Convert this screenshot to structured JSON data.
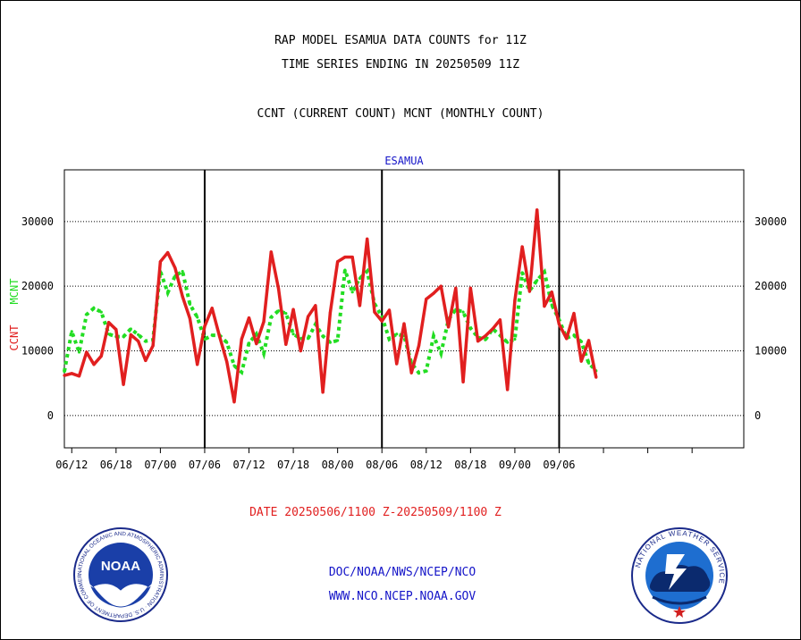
{
  "header": {
    "title_line1": "RAP MODEL ESAMUA DATA COUNTS for 11Z",
    "title_line2": "TIME SERIES ENDING IN 20250509 11Z",
    "subtitle": "CCNT (CURRENT COUNT) MCNT (MONTHLY COUNT)"
  },
  "colors": {
    "ccnt": "#e11f1f",
    "mcnt": "#22dd22",
    "station": "#1414c8",
    "axis": "#000000"
  },
  "chart_data": {
    "type": "line",
    "title": "ESAMUA",
    "ylabel_ccnt": "CCNT",
    "ylabel_mcnt": "MCNT",
    "ylim": [
      -5000,
      38000
    ],
    "yticks": [
      0,
      10000,
      20000,
      30000
    ],
    "ytick_labels": [
      "0",
      "10000",
      "20000",
      "30000"
    ],
    "x_range": [
      0,
      92
    ],
    "xticks": [
      1,
      7,
      13,
      19,
      25,
      31,
      37,
      43,
      49,
      55,
      61,
      67,
      73,
      79,
      85
    ],
    "xtick_labels": [
      "06/12",
      "06/18",
      "07/00",
      "07/06",
      "07/12",
      "07/18",
      "08/00",
      "08/06",
      "08/12",
      "08/18",
      "09/00",
      "09/06"
    ],
    "xtick_label_pos": [
      1,
      7,
      13,
      19,
      25,
      31,
      37,
      43,
      49,
      55,
      61,
      67
    ],
    "day_boundaries": [
      19,
      43,
      67
    ],
    "grid": "horizontal dotted",
    "series": [
      {
        "name": "CCNT",
        "style": "solid",
        "x": [
          0,
          1,
          2,
          3,
          4,
          5,
          6,
          7,
          8,
          9,
          10,
          11,
          12,
          13,
          14,
          15,
          16,
          17,
          18,
          19,
          20,
          21,
          22,
          23,
          24,
          25,
          26,
          27,
          28,
          29,
          30,
          31,
          32,
          33,
          34,
          35,
          36,
          37,
          38,
          39,
          40,
          41,
          42,
          43,
          44,
          45,
          46,
          47,
          48,
          49,
          50,
          51,
          52,
          53,
          54,
          55,
          56,
          57,
          58,
          59,
          60,
          61,
          62,
          63,
          64,
          65,
          66,
          67,
          68,
          69,
          70,
          71,
          72
        ],
        "values": [
          6200,
          6500,
          6100,
          9800,
          7900,
          9200,
          14400,
          13300,
          4800,
          12500,
          11500,
          8500,
          10800,
          23800,
          25200,
          22800,
          18400,
          15000,
          7900,
          13800,
          16600,
          12300,
          8300,
          2100,
          11800,
          15100,
          11100,
          14500,
          25300,
          19600,
          11000,
          16400,
          10000,
          15300,
          17000,
          3600,
          15900,
          23800,
          24500,
          24500,
          17000,
          27300,
          16000,
          14600,
          16300,
          8000,
          14200,
          6600,
          10800,
          18000,
          18900,
          20000,
          13700,
          19700,
          5200,
          19700,
          11500,
          12300,
          13400,
          14800,
          4000,
          17800,
          26100,
          19200,
          31800,
          16900,
          19100,
          14100,
          11900,
          15800,
          8400,
          11600,
          5900
        ]
      },
      {
        "name": "MCNT",
        "style": "dotted",
        "x": [
          0,
          1,
          2,
          3,
          4,
          5,
          6,
          7,
          8,
          9,
          10,
          11,
          12,
          13,
          14,
          15,
          16,
          17,
          18,
          19,
          20,
          21,
          22,
          23,
          24,
          25,
          26,
          27,
          28,
          29,
          30,
          31,
          32,
          33,
          34,
          35,
          36,
          37,
          38,
          39,
          40,
          41,
          42,
          43,
          44,
          45,
          46,
          47,
          48,
          49,
          50,
          51,
          52,
          53,
          54,
          55,
          56,
          57,
          58,
          59,
          60,
          61,
          62,
          63,
          64,
          65,
          66,
          67,
          68,
          69,
          70,
          71,
          72
        ],
        "values": [
          6800,
          13000,
          9800,
          15600,
          16600,
          16000,
          12600,
          12200,
          12200,
          13400,
          12500,
          11500,
          11700,
          22300,
          19000,
          21600,
          22300,
          17200,
          15200,
          11800,
          12400,
          12400,
          11300,
          7700,
          6700,
          11200,
          12600,
          9600,
          15200,
          16200,
          15800,
          12600,
          11900,
          11900,
          14100,
          12300,
          11300,
          11600,
          22500,
          19100,
          21200,
          22300,
          17300,
          15300,
          11800,
          12600,
          12300,
          8100,
          6600,
          6900,
          12300,
          9600,
          14800,
          16400,
          16000,
          13500,
          12100,
          11700,
          13400,
          12400,
          11300,
          11800,
          22100,
          19300,
          20900,
          22200,
          17100,
          14800,
          12000,
          12400,
          11400,
          8100,
          6900
        ]
      }
    ],
    "date_label": "DATE 20250506/1100 Z-20250509/1100 Z"
  },
  "footer": {
    "org_line": "DOC/NOAA/NWS/NCEP/NCO",
    "url_line": "WWW.NCO.NCEP.NOAA.GOV",
    "noaa_logo_text": "NOAA",
    "noaa_ring_text": "NATIONAL OCEANIC AND ATMOSPHERIC ADMINISTRATION · U.S. DEPARTMENT OF COMMERCE",
    "nws_ring_text": "NATIONAL WEATHER SERVICE"
  }
}
